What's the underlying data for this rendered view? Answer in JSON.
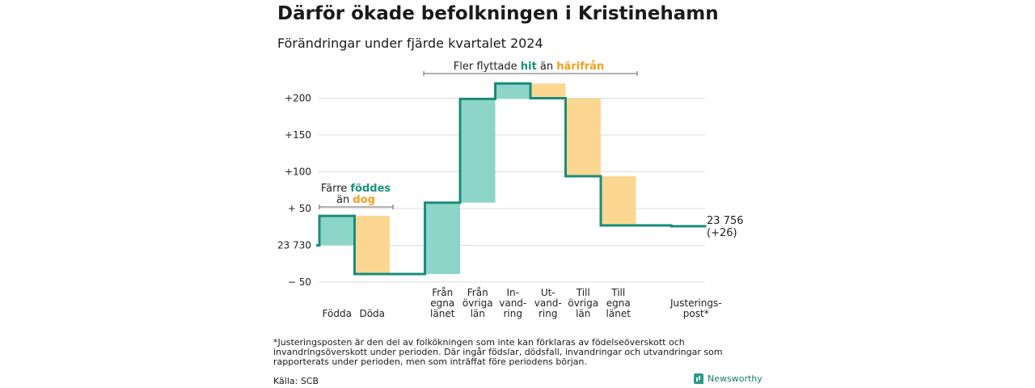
{
  "title": "Därför ökade befolkningen i Kristinehamn",
  "subtitle": "Förändringar under fjärde kvartalet 2024",
  "colors": {
    "line": "#1a8c7c",
    "gain": "#8dd5c9",
    "loss": "#fbd792",
    "teal_text": "#1a9080",
    "orange_text": "#f0a020",
    "grid": "#dddddd"
  },
  "chart_data": {
    "type": "waterfall",
    "base": 23730,
    "yticks": [
      {
        "value": -50,
        "label": "− 50"
      },
      {
        "value": 0,
        "label": "23 730"
      },
      {
        "value": 50,
        "label": "+ 50"
      },
      {
        "value": 100,
        "label": "+100"
      },
      {
        "value": 150,
        "label": "+150"
      },
      {
        "value": 200,
        "label": "+200"
      }
    ],
    "ylim": [
      -50,
      230
    ],
    "steps": [
      {
        "label": "Födda",
        "start": 0,
        "end": 40,
        "kind": "gain"
      },
      {
        "label": "Döda",
        "start": 40,
        "end": -39,
        "kind": "loss"
      },
      {
        "label": "Från egna länet",
        "start": -39,
        "end": 58,
        "kind": "gain"
      },
      {
        "label": "Från övriga län",
        "start": 58,
        "end": 199,
        "kind": "gain"
      },
      {
        "label": "In-vand-ring",
        "start": 199,
        "end": 220,
        "kind": "gain"
      },
      {
        "label": "Ut-vand-ring",
        "start": 220,
        "end": 200,
        "kind": "loss"
      },
      {
        "label": "Till övriga län",
        "start": 200,
        "end": 94,
        "kind": "loss"
      },
      {
        "label": "Till egna länet",
        "start": 94,
        "end": 27,
        "kind": "loss"
      },
      {
        "label": "Justerings-post*",
        "start": 27,
        "end": 26,
        "kind": "loss"
      }
    ],
    "category_lines": [
      [
        "Födda"
      ],
      [
        "Döda"
      ],
      [
        "Från",
        "egna",
        "länet"
      ],
      [
        "Från",
        "övriga",
        "län"
      ],
      [
        "In-",
        "vand-",
        "ring"
      ],
      [
        "Ut-",
        "vand-",
        "ring"
      ],
      [
        "Till",
        "övriga",
        "län"
      ],
      [
        "Till",
        "egna",
        "länet"
      ],
      [
        "Justerings-",
        "post*"
      ]
    ],
    "end_label": [
      "23 756",
      "(+26)"
    ],
    "annotations": {
      "births": {
        "line1": "Färre",
        "hl1": "föddes",
        "line2": "än",
        "hl2": "dog"
      },
      "migration": {
        "pre": "Fler flyttade",
        "hl1": "hit",
        "mid": "än",
        "hl2": "härifrån"
      }
    }
  },
  "footnote": "*Justeringsposten är den del av folkökningen som inte kan förklaras av födelseöverskott och invandringsöverskott under perioden. Där ingår födslar, dödsfall, invandringar och utvandringar som rapporterats under perioden, men som inträffat före periodens början.",
  "source": "Källa: SCB",
  "brand": "Newsworthy"
}
